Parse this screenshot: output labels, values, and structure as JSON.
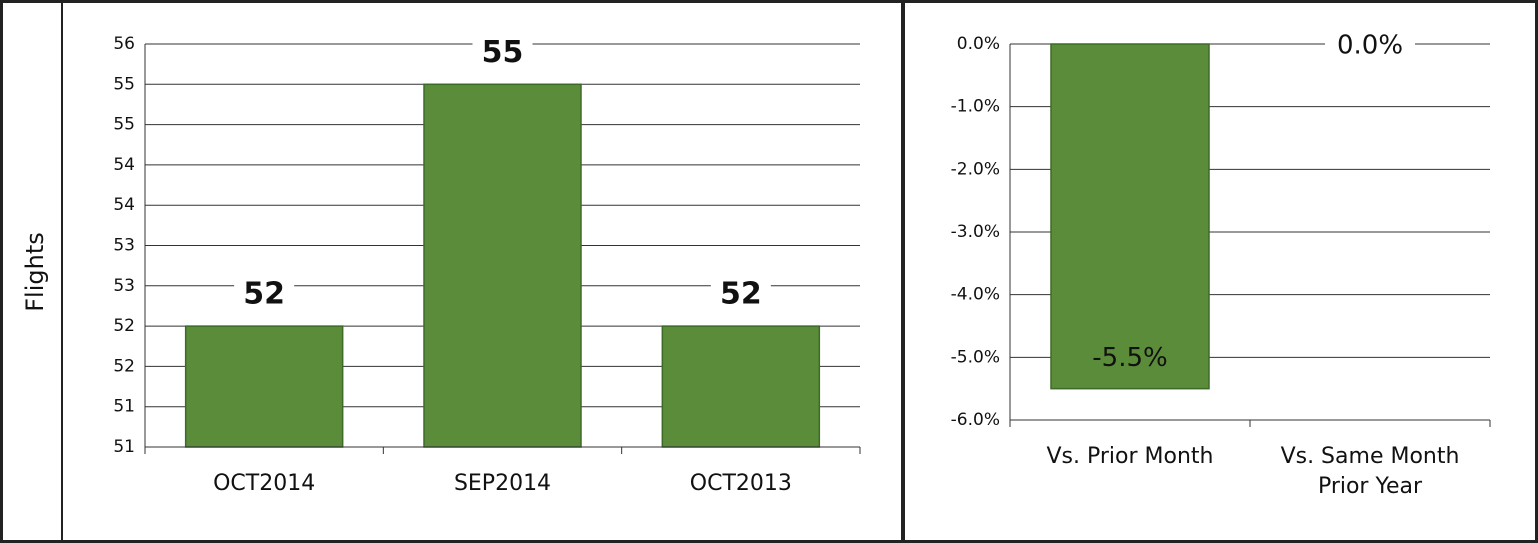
{
  "chart_data": [
    {
      "type": "bar",
      "y_label": "Flights",
      "categories": [
        "OCT2014",
        "SEP2014",
        "OCT2013"
      ],
      "values": [
        52,
        55,
        52
      ],
      "color": "#5b8c3a",
      "ylim": [
        50.5,
        55.5
      ],
      "yticks": [
        {
          "value": 50.5,
          "label": "51"
        },
        51,
        {
          "value": 51.5,
          "label": "52"
        },
        52,
        {
          "value": 52.5,
          "label": "53"
        },
        53,
        {
          "value": 53.5,
          "label": "54"
        },
        54,
        {
          "value": 54.5,
          "label": "55"
        },
        55,
        {
          "value": 55.5,
          "label": "56"
        }
      ],
      "grid": true
    },
    {
      "type": "bar",
      "categories": [
        "Vs. Prior Month",
        "Vs. Same Month Prior Year"
      ],
      "values": [
        -5.5,
        0.0
      ],
      "value_labels": [
        "-5.5%",
        "0.0%"
      ],
      "color": "#5b8c3a",
      "ylim": [
        -6,
        0
      ],
      "yticks": [
        {
          "value": 0,
          "label": "0.0%"
        },
        {
          "value": -1,
          "label": "-1.0%"
        },
        {
          "value": -2,
          "label": "-2.0%"
        },
        {
          "value": -3,
          "label": "-3.0%"
        },
        {
          "value": -4,
          "label": "-4.0%"
        },
        {
          "value": -5,
          "label": "-5.0%"
        },
        {
          "value": -6,
          "label": "-6.0%"
        }
      ],
      "grid": true
    }
  ]
}
